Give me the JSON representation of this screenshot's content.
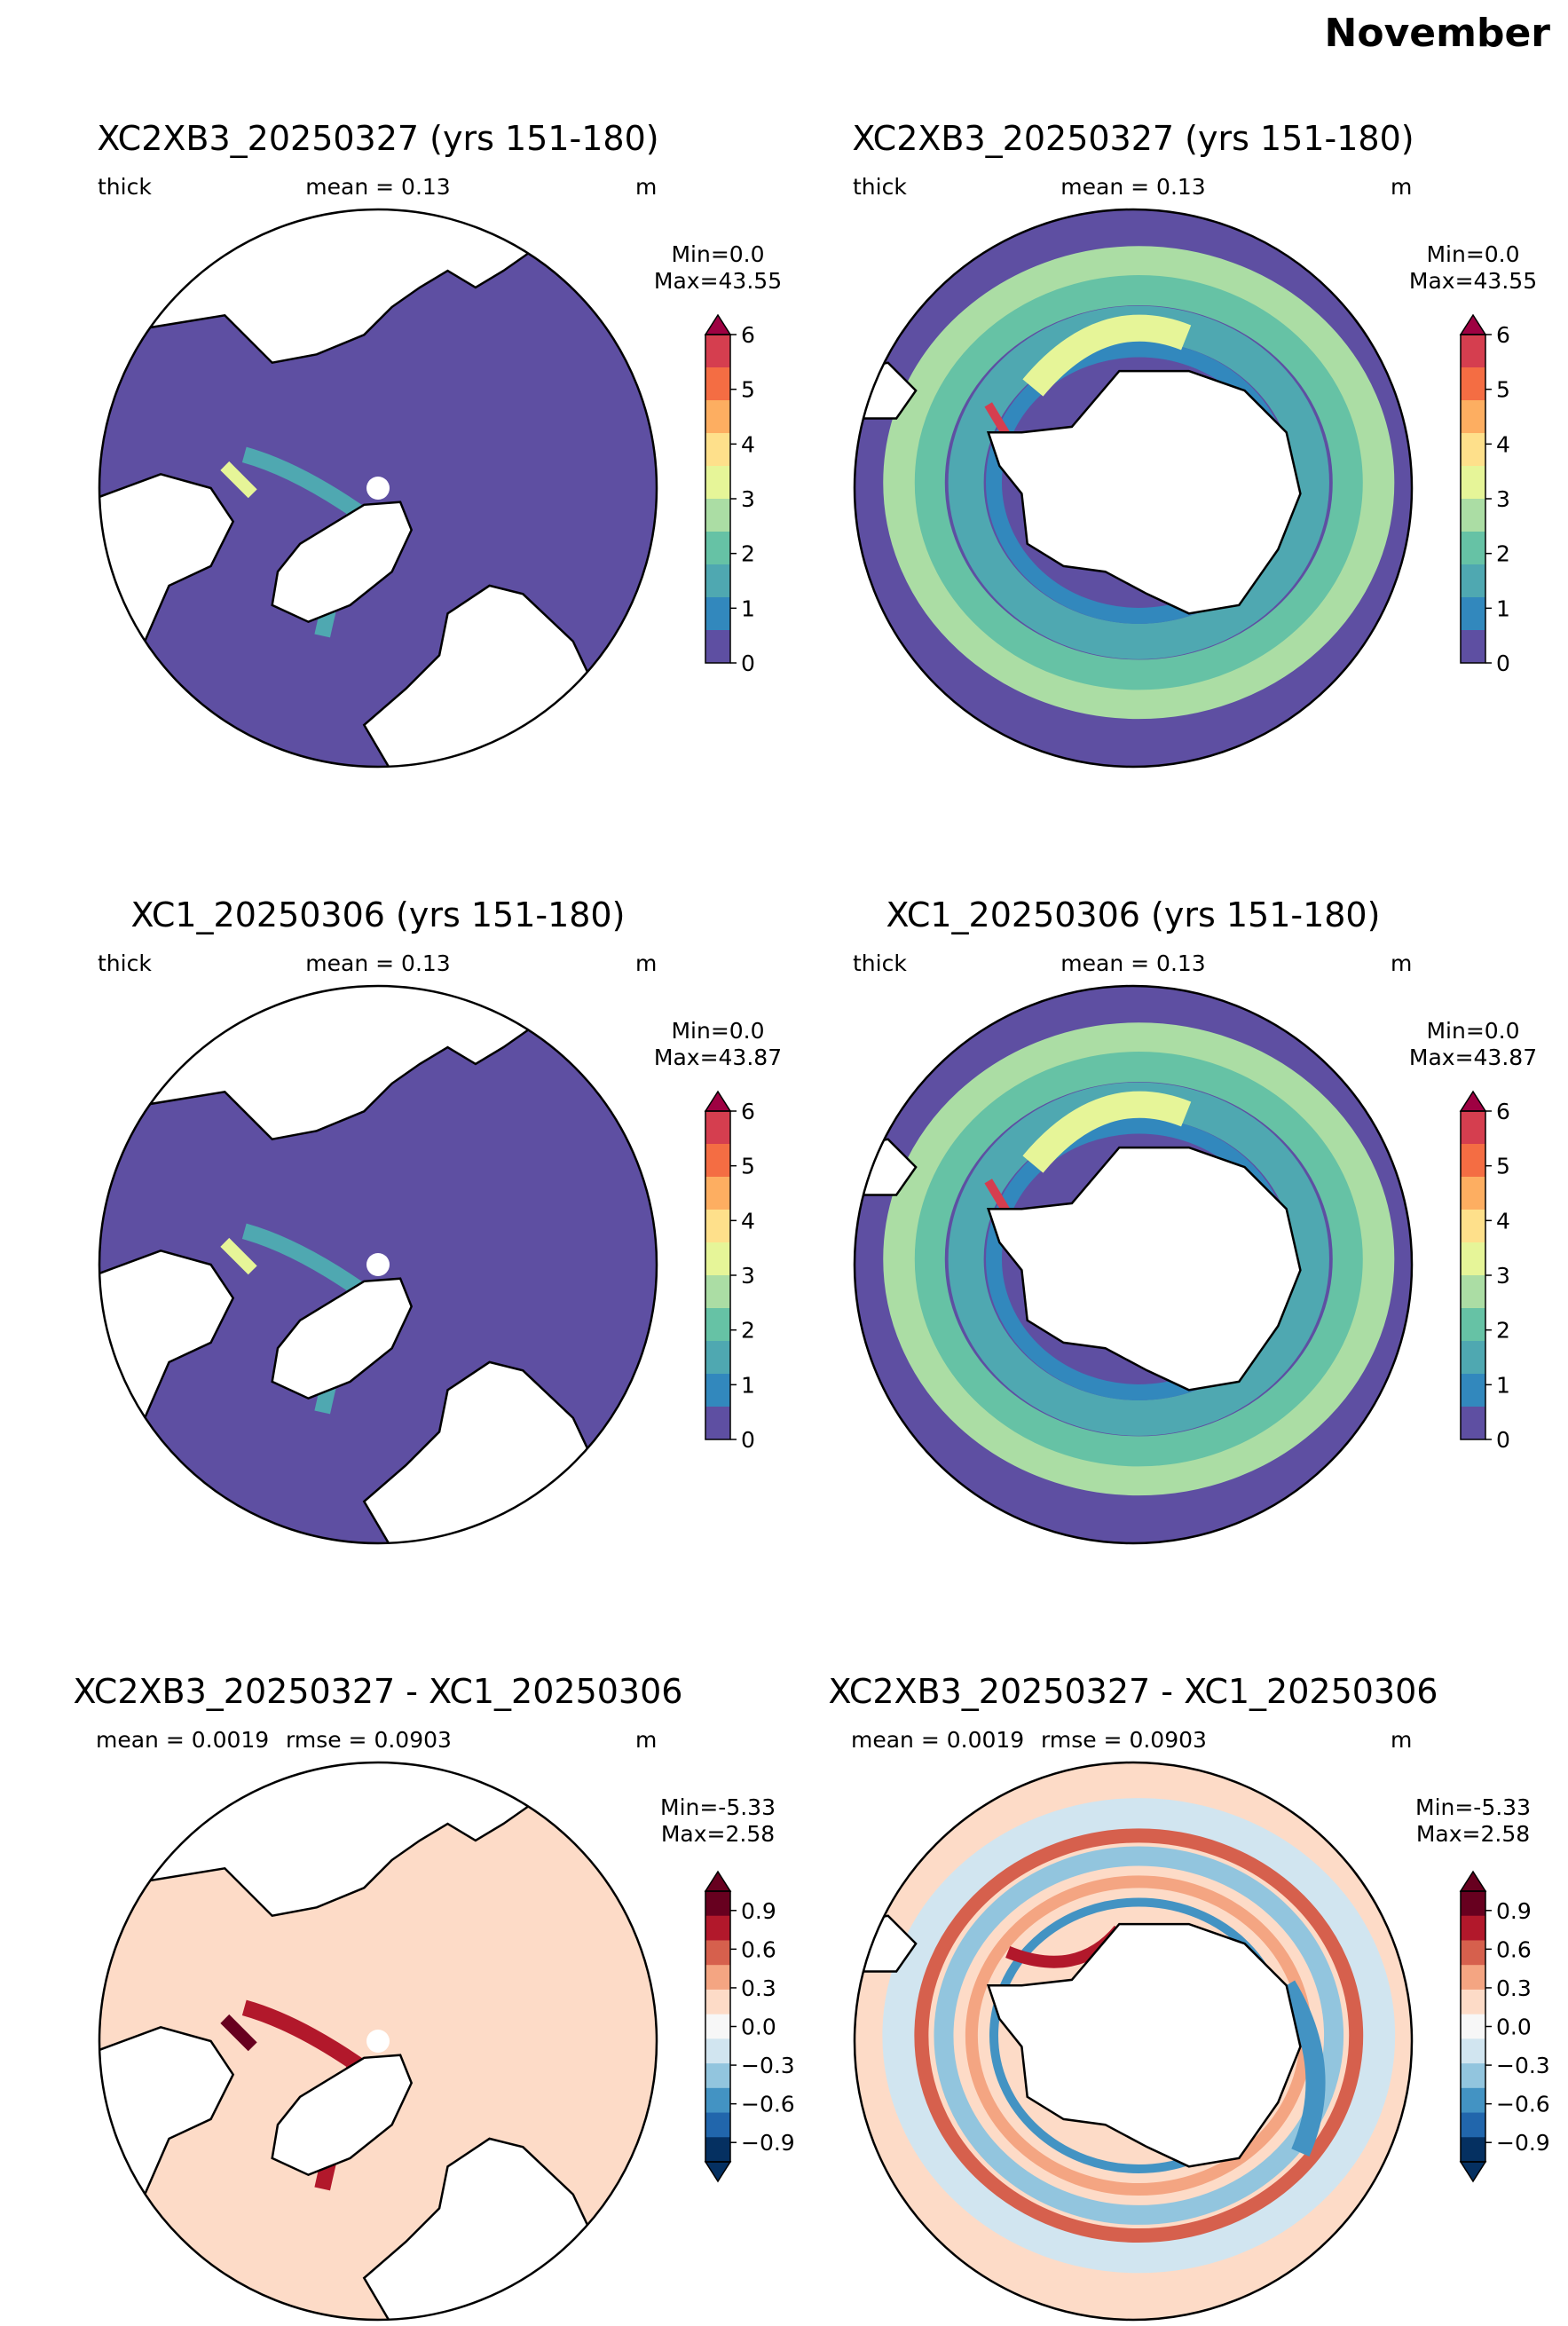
{
  "figure_title": "November",
  "colors": {
    "land": "#ffffff",
    "coast": "#000000",
    "thickness_scale": [
      "#5e4fa2",
      "#3288bd",
      "#4fa8b1",
      "#66c2a5",
      "#abdda4",
      "#e6f598",
      "#fee08b",
      "#fdae61",
      "#f46d43",
      "#d53e4f",
      "#9e0142"
    ],
    "difference_scale": [
      "#053061",
      "#2166ac",
      "#4393c3",
      "#92c5de",
      "#d1e5f0",
      "#f7f7f7",
      "#fddbc7",
      "#f4a582",
      "#d6604d",
      "#b2182b",
      "#67001f"
    ]
  },
  "panels": [
    {
      "hemisphere": "north",
      "title": "XC2XB3_20250327 (yrs 151-180)",
      "var": "thick",
      "stat": "mean = 0.13",
      "stat2": "",
      "units": "m",
      "min": "Min=0.0",
      "max": "Max=43.55",
      "scale": "thickness"
    },
    {
      "hemisphere": "south",
      "title": "XC2XB3_20250327 (yrs 151-180)",
      "var": "thick",
      "stat": "mean = 0.13",
      "stat2": "",
      "units": "m",
      "min": "Min=0.0",
      "max": "Max=43.55",
      "scale": "thickness"
    },
    {
      "hemisphere": "north",
      "title": "XC1_20250306 (yrs 151-180)",
      "var": "thick",
      "stat": "mean = 0.13",
      "stat2": "",
      "units": "m",
      "min": "Min=0.0",
      "max": "Max=43.87",
      "scale": "thickness"
    },
    {
      "hemisphere": "south",
      "title": "XC1_20250306 (yrs 151-180)",
      "var": "thick",
      "stat": "mean = 0.13",
      "stat2": "",
      "units": "m",
      "min": "Min=0.0",
      "max": "Max=43.87",
      "scale": "thickness"
    },
    {
      "hemisphere": "north",
      "title": "XC2XB3_20250327 - XC1_20250306",
      "var": "",
      "stat": "mean = 0.0019",
      "stat2": "rmse = 0.0903",
      "units": "m",
      "min": "Min=-5.33",
      "max": "Max=2.58",
      "scale": "difference"
    },
    {
      "hemisphere": "south",
      "title": "XC2XB3_20250327 - XC1_20250306",
      "var": "",
      "stat": "mean = 0.0019",
      "stat2": "rmse = 0.0903",
      "units": "m",
      "min": "Min=-5.33",
      "max": "Max=2.58",
      "scale": "difference"
    }
  ],
  "colorbars": {
    "thickness": {
      "ticks": [
        "0",
        "1",
        "2",
        "3",
        "4",
        "5",
        "6"
      ],
      "range": [
        0,
        6
      ],
      "extend": "max"
    },
    "difference": {
      "ticks": [
        "−0.9",
        "−0.6",
        "−0.3",
        "0.0",
        "0.3",
        "0.6",
        "0.9"
      ],
      "range": [
        -1.05,
        1.05
      ],
      "extend": "both"
    }
  },
  "chart_data": [
    {
      "type": "heatmap",
      "map": "north polar stereographic",
      "title": "XC2XB3_20250327 (yrs 151-180)",
      "variable": "thick",
      "units": "m",
      "mean": 0.13,
      "min": 0.0,
      "max": 43.55,
      "colorbar_range": [
        0,
        6
      ],
      "colorbar_ticks": [
        0,
        1,
        2,
        3,
        4,
        5,
        6
      ]
    },
    {
      "type": "heatmap",
      "map": "south polar stereographic",
      "title": "XC2XB3_20250327 (yrs 151-180)",
      "variable": "thick",
      "units": "m",
      "mean": 0.13,
      "min": 0.0,
      "max": 43.55,
      "colorbar_range": [
        0,
        6
      ],
      "colorbar_ticks": [
        0,
        1,
        2,
        3,
        4,
        5,
        6
      ]
    },
    {
      "type": "heatmap",
      "map": "north polar stereographic",
      "title": "XC1_20250306 (yrs 151-180)",
      "variable": "thick",
      "units": "m",
      "mean": 0.13,
      "min": 0.0,
      "max": 43.87,
      "colorbar_range": [
        0,
        6
      ],
      "colorbar_ticks": [
        0,
        1,
        2,
        3,
        4,
        5,
        6
      ]
    },
    {
      "type": "heatmap",
      "map": "south polar stereographic",
      "title": "XC1_20250306 (yrs 151-180)",
      "variable": "thick",
      "units": "m",
      "mean": 0.13,
      "min": 0.0,
      "max": 43.87,
      "colorbar_range": [
        0,
        6
      ],
      "colorbar_ticks": [
        0,
        1,
        2,
        3,
        4,
        5,
        6
      ]
    },
    {
      "type": "heatmap",
      "map": "north polar stereographic",
      "title": "XC2XB3_20250327 - XC1_20250306",
      "units": "m",
      "mean": 0.0019,
      "rmse": 0.0903,
      "min": -5.33,
      "max": 2.58,
      "colorbar_ticks": [
        -0.9,
        -0.6,
        -0.3,
        0.0,
        0.3,
        0.6,
        0.9
      ]
    },
    {
      "type": "heatmap",
      "map": "south polar stereographic",
      "title": "XC2XB3_20250327 - XC1_20250306",
      "units": "m",
      "mean": 0.0019,
      "rmse": 0.0903,
      "min": -5.33,
      "max": 2.58,
      "colorbar_ticks": [
        -0.9,
        -0.6,
        -0.3,
        0.0,
        0.3,
        0.6,
        0.9
      ]
    }
  ]
}
